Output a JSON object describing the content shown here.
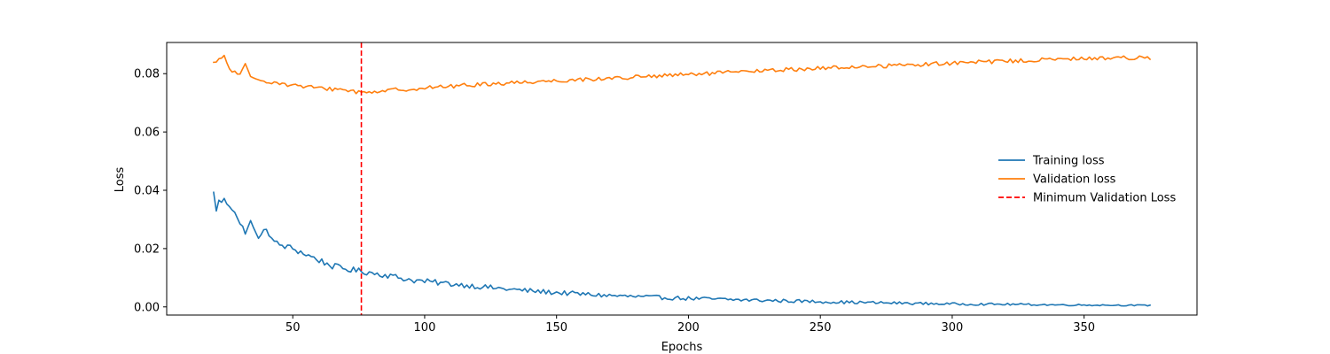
{
  "chart_data": {
    "type": "line",
    "title": "",
    "xlabel": "Epochs",
    "ylabel": "Loss",
    "xlim": [
      2.2,
      392.8
    ],
    "ylim": [
      -0.0028,
      0.0907
    ],
    "xticks": [
      50,
      100,
      150,
      200,
      250,
      300,
      350
    ],
    "xtick_labels": [
      "50",
      "100",
      "150",
      "200",
      "250",
      "300",
      "350"
    ],
    "yticks": [
      0.0,
      0.02,
      0.04,
      0.06,
      0.08
    ],
    "ytick_labels": [
      "0.00",
      "0.02",
      "0.04",
      "0.06",
      "0.08"
    ],
    "grid": false,
    "legend_position": "center-right",
    "x_range": [
      20,
      375
    ],
    "series": [
      {
        "name": "Training loss",
        "color": "#1f77b4",
        "anchors": [
          [
            20,
            0.0388
          ],
          [
            21,
            0.0336
          ],
          [
            22,
            0.036
          ],
          [
            24,
            0.0365
          ],
          [
            26,
            0.035
          ],
          [
            28,
            0.033
          ],
          [
            30,
            0.028
          ],
          [
            32,
            0.026
          ],
          [
            34,
            0.029
          ],
          [
            36,
            0.025
          ],
          [
            38,
            0.024
          ],
          [
            40,
            0.027
          ],
          [
            43,
            0.022
          ],
          [
            46,
            0.021
          ],
          [
            50,
            0.02
          ],
          [
            55,
            0.018
          ],
          [
            60,
            0.016
          ],
          [
            65,
            0.014
          ],
          [
            70,
            0.013
          ],
          [
            76,
            0.0122
          ],
          [
            85,
            0.011
          ],
          [
            95,
            0.0092
          ],
          [
            105,
            0.0083
          ],
          [
            115,
            0.0075
          ],
          [
            125,
            0.0066
          ],
          [
            135,
            0.0058
          ],
          [
            150,
            0.0049
          ],
          [
            165,
            0.0041
          ],
          [
            180,
            0.0035
          ],
          [
            200,
            0.0029
          ],
          [
            220,
            0.0024
          ],
          [
            240,
            0.002
          ],
          [
            260,
            0.0016
          ],
          [
            280,
            0.0013
          ],
          [
            300,
            0.001
          ],
          [
            320,
            0.0009
          ],
          [
            340,
            0.0007
          ],
          [
            360,
            0.0006
          ],
          [
            375,
            0.0005
          ]
        ],
        "noise": 0.0012,
        "noise_min": 0.0002
      },
      {
        "name": "Validation loss",
        "color": "#ff7f0e",
        "anchors": [
          [
            20,
            0.0835
          ],
          [
            22,
            0.0845
          ],
          [
            24,
            0.0862
          ],
          [
            26,
            0.0815
          ],
          [
            28,
            0.0805
          ],
          [
            30,
            0.0795
          ],
          [
            32,
            0.083
          ],
          [
            34,
            0.0785
          ],
          [
            40,
            0.0775
          ],
          [
            50,
            0.076
          ],
          [
            60,
            0.075
          ],
          [
            70,
            0.0745
          ],
          [
            76,
            0.0735
          ],
          [
            85,
            0.0742
          ],
          [
            95,
            0.0748
          ],
          [
            110,
            0.0757
          ],
          [
            125,
            0.0765
          ],
          [
            140,
            0.0772
          ],
          [
            160,
            0.078
          ],
          [
            180,
            0.0788
          ],
          [
            200,
            0.0797
          ],
          [
            220,
            0.0806
          ],
          [
            240,
            0.0815
          ],
          [
            260,
            0.0822
          ],
          [
            280,
            0.0829
          ],
          [
            300,
            0.0836
          ],
          [
            320,
            0.0843
          ],
          [
            340,
            0.0849
          ],
          [
            360,
            0.0854
          ],
          [
            375,
            0.0856
          ]
        ],
        "noise": 0.0007,
        "noise_min": 0.0007
      }
    ],
    "annotations": [
      {
        "type": "vline",
        "x": 76,
        "name": "Minimum Validation Loss",
        "color": "#ff0000",
        "style": "dashed"
      }
    ],
    "legend": [
      {
        "label": "Training loss",
        "color": "#1f77b4",
        "style": "solid"
      },
      {
        "label": "Validation loss",
        "color": "#ff7f0e",
        "style": "solid"
      },
      {
        "label": "Minimum Validation Loss",
        "color": "#ff0000",
        "style": "dashed"
      }
    ]
  }
}
